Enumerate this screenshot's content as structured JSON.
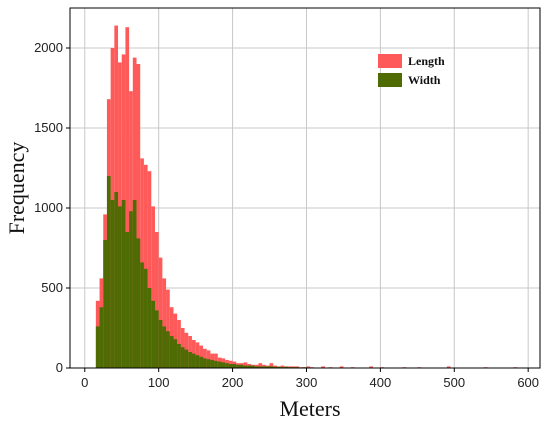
{
  "chart_data": {
    "type": "bar",
    "title": "",
    "xlabel": "Meters",
    "ylabel": "Frequency",
    "xlim": [
      0,
      600
    ],
    "ylim": [
      0,
      2200
    ],
    "xticks": [
      0,
      100,
      200,
      300,
      400,
      500,
      600
    ],
    "yticks": [
      0,
      500,
      1000,
      1500,
      2000
    ],
    "grid": true,
    "legend_position": "top-right",
    "bin_width": 5,
    "series": [
      {
        "name": "Length",
        "color": "#ff5a5a",
        "bins": [
          [
            15,
            420
          ],
          [
            20,
            560
          ],
          [
            25,
            960
          ],
          [
            30,
            1680
          ],
          [
            35,
            2000
          ],
          [
            40,
            2140
          ],
          [
            45,
            1910
          ],
          [
            50,
            1960
          ],
          [
            55,
            2130
          ],
          [
            60,
            1730
          ],
          [
            65,
            1940
          ],
          [
            70,
            1900
          ],
          [
            75,
            1310
          ],
          [
            80,
            1270
          ],
          [
            85,
            1230
          ],
          [
            90,
            1010
          ],
          [
            95,
            850
          ],
          [
            100,
            690
          ],
          [
            105,
            560
          ],
          [
            110,
            490
          ],
          [
            115,
            380
          ],
          [
            120,
            340
          ],
          [
            125,
            300
          ],
          [
            130,
            250
          ],
          [
            135,
            220
          ],
          [
            140,
            200
          ],
          [
            145,
            175
          ],
          [
            150,
            160
          ],
          [
            155,
            140
          ],
          [
            160,
            120
          ],
          [
            165,
            110
          ],
          [
            170,
            90
          ],
          [
            175,
            90
          ],
          [
            180,
            65
          ],
          [
            185,
            60
          ],
          [
            190,
            50
          ],
          [
            195,
            45
          ],
          [
            200,
            40
          ],
          [
            205,
            30
          ],
          [
            210,
            30
          ],
          [
            215,
            35
          ],
          [
            220,
            25
          ],
          [
            225,
            20
          ],
          [
            230,
            20
          ],
          [
            235,
            30
          ],
          [
            240,
            20
          ],
          [
            245,
            15
          ],
          [
            250,
            30
          ],
          [
            255,
            15
          ],
          [
            260,
            10
          ],
          [
            265,
            15
          ],
          [
            270,
            10
          ],
          [
            275,
            10
          ],
          [
            280,
            10
          ],
          [
            285,
            10
          ],
          [
            290,
            5
          ],
          [
            300,
            10
          ],
          [
            305,
            5
          ],
          [
            320,
            10
          ],
          [
            330,
            5
          ],
          [
            345,
            10
          ],
          [
            360,
            5
          ],
          [
            385,
            10
          ],
          [
            400,
            5
          ],
          [
            430,
            5
          ],
          [
            450,
            5
          ],
          [
            490,
            10
          ],
          [
            540,
            5
          ],
          [
            580,
            5
          ]
        ]
      },
      {
        "name": "Width",
        "color": "#4f6b04",
        "bins": [
          [
            15,
            260
          ],
          [
            20,
            380
          ],
          [
            25,
            800
          ],
          [
            30,
            1200
          ],
          [
            35,
            1050
          ],
          [
            40,
            1100
          ],
          [
            45,
            1010
          ],
          [
            50,
            1050
          ],
          [
            55,
            850
          ],
          [
            60,
            980
          ],
          [
            65,
            1050
          ],
          [
            70,
            810
          ],
          [
            75,
            660
          ],
          [
            80,
            620
          ],
          [
            85,
            500
          ],
          [
            90,
            420
          ],
          [
            95,
            360
          ],
          [
            100,
            300
          ],
          [
            105,
            260
          ],
          [
            110,
            230
          ],
          [
            115,
            200
          ],
          [
            120,
            180
          ],
          [
            125,
            150
          ],
          [
            130,
            130
          ],
          [
            135,
            115
          ],
          [
            140,
            100
          ],
          [
            145,
            90
          ],
          [
            150,
            80
          ],
          [
            155,
            70
          ],
          [
            160,
            60
          ],
          [
            165,
            55
          ],
          [
            170,
            50
          ],
          [
            175,
            45
          ],
          [
            180,
            40
          ],
          [
            185,
            35
          ],
          [
            190,
            30
          ],
          [
            195,
            25
          ],
          [
            200,
            25
          ],
          [
            205,
            20
          ],
          [
            210,
            20
          ],
          [
            215,
            15
          ],
          [
            220,
            15
          ],
          [
            225,
            15
          ],
          [
            230,
            10
          ],
          [
            235,
            10
          ],
          [
            240,
            10
          ],
          [
            245,
            10
          ],
          [
            250,
            10
          ],
          [
            255,
            8
          ],
          [
            260,
            8
          ],
          [
            265,
            5
          ],
          [
            270,
            8
          ],
          [
            275,
            5
          ],
          [
            280,
            5
          ],
          [
            285,
            5
          ],
          [
            295,
            5
          ],
          [
            310,
            3
          ],
          [
            340,
            3
          ]
        ]
      }
    ]
  }
}
